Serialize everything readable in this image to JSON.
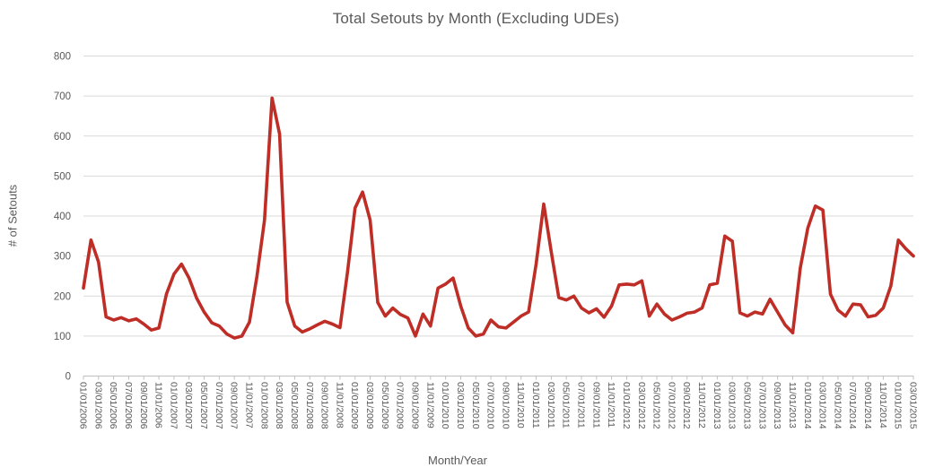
{
  "chart_data": {
    "type": "line",
    "title": "Total Setouts by Month (Excluding UDEs)",
    "xlabel": "Month/Year",
    "ylabel": "# of Setouts",
    "ylim": [
      0,
      800
    ],
    "yticks": [
      0,
      100,
      200,
      300,
      400,
      500,
      600,
      700,
      800
    ],
    "grid": "horizontal",
    "legend": "none",
    "x_start": "01/01/2006",
    "x_tick_every_months": 2,
    "x_tick_labels": [
      "01/01/2006",
      "03/01/2006",
      "05/01/2006",
      "07/01/2006",
      "09/01/2006",
      "11/01/2006",
      "01/01/2007",
      "03/01/2007",
      "05/01/2007",
      "07/01/2007",
      "09/01/2007",
      "11/01/2007",
      "01/01/2008",
      "03/01/2008",
      "05/01/2008",
      "07/01/2008",
      "09/01/2008",
      "11/01/2008",
      "01/01/2009",
      "03/01/2009",
      "05/01/2009",
      "07/01/2009",
      "09/01/2009",
      "11/01/2009",
      "01/01/2010",
      "03/01/2010",
      "05/01/2010",
      "07/01/2010",
      "09/01/2010",
      "11/01/2010",
      "01/01/2011",
      "03/01/2011",
      "05/01/2011",
      "07/01/2011",
      "09/01/2011",
      "11/01/2011",
      "01/01/2012",
      "03/01/2012",
      "05/01/2012",
      "07/01/2012",
      "09/01/2012",
      "11/01/2012",
      "01/01/2013",
      "03/01/2013",
      "05/01/2013",
      "07/01/2013",
      "09/01/2013",
      "11/01/2013",
      "01/01/2014",
      "03/01/2014",
      "05/01/2014",
      "07/01/2014",
      "09/01/2014",
      "11/01/2014",
      "01/01/2015",
      "03/01/2015"
    ],
    "series": [
      {
        "name": "Total Setouts",
        "values": [
          220,
          340,
          285,
          148,
          140,
          146,
          138,
          143,
          130,
          115,
          120,
          205,
          255,
          280,
          245,
          195,
          160,
          133,
          125,
          105,
          95,
          100,
          135,
          250,
          390,
          695,
          605,
          185,
          125,
          110,
          118,
          128,
          137,
          130,
          121,
          260,
          420,
          460,
          390,
          184,
          150,
          170,
          154,
          145,
          100,
          155,
          125,
          220,
          230,
          245,
          175,
          120,
          100,
          105,
          140,
          123,
          120,
          135,
          150,
          160,
          280,
          430,
          310,
          196,
          190,
          200,
          170,
          158,
          168,
          147,
          175,
          228,
          230,
          228,
          238,
          150,
          180,
          155,
          140,
          148,
          157,
          160,
          170,
          228,
          232,
          350,
          337,
          158,
          150,
          160,
          155,
          192,
          160,
          128,
          108,
          270,
          370,
          425,
          415,
          205,
          165,
          150,
          180,
          178,
          148,
          152,
          170,
          225,
          340,
          318,
          300
        ]
      }
    ],
    "colors": {
      "line": "#BE2E26",
      "gridline": "#D9D9D9",
      "axis_line": "#BFBFBF",
      "tick_text": "#595959",
      "title_text": "#595959",
      "background": "#FFFFFF"
    }
  }
}
